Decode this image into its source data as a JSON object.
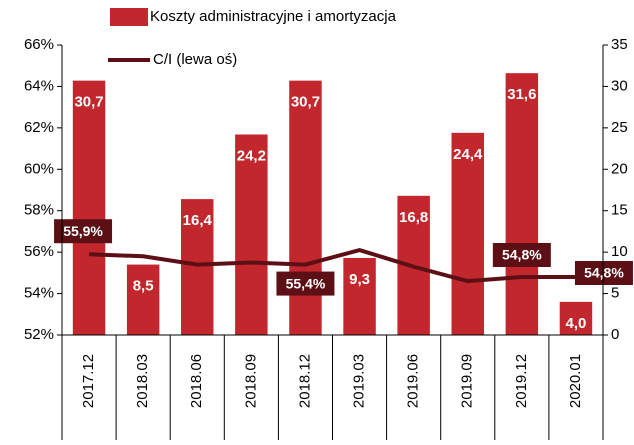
{
  "chart_data": {
    "type": "bar_line",
    "categories": [
      "2017.12",
      "2018.03",
      "2018.06",
      "2018.09",
      "2018.12",
      "2019.03",
      "2019.06",
      "2019.09",
      "2019.12",
      "2020.01"
    ],
    "series": [
      {
        "name": "Koszty administracyjne i amortyzacja",
        "type": "bar",
        "axis": "y2",
        "color": "#c1272d",
        "values": [
          30.7,
          8.5,
          16.4,
          24.2,
          30.7,
          9.3,
          16.8,
          24.4,
          31.6,
          4.0
        ],
        "value_labels": [
          "30,7",
          "8,5",
          "16,4",
          "24,2",
          "30,7",
          "9,3",
          "16,8",
          "24,4",
          "31,6",
          "4,0"
        ]
      },
      {
        "name": "C/I (lewa oś)",
        "type": "line",
        "axis": "y",
        "color": "#5c1015",
        "values": [
          55.9,
          55.8,
          55.4,
          55.5,
          55.4,
          56.1,
          55.3,
          54.6,
          54.8,
          54.8
        ],
        "value_labels": [
          "55,9%",
          null,
          null,
          null,
          "55,4%",
          null,
          null,
          null,
          "54,8%",
          "54,8%"
        ]
      }
    ],
    "ylim": [
      52,
      66
    ],
    "yticks": [
      {
        "value": 52,
        "label": "52%"
      },
      {
        "value": 54,
        "label": "54%"
      },
      {
        "value": 56,
        "label": "56%"
      },
      {
        "value": 58,
        "label": "58%"
      },
      {
        "value": 60,
        "label": "60%"
      },
      {
        "value": 62,
        "label": "62%"
      },
      {
        "value": 64,
        "label": "64%"
      },
      {
        "value": 66,
        "label": "66%"
      }
    ],
    "y2lim": [
      0,
      35
    ],
    "y2ticks": [
      0,
      5,
      10,
      15,
      20,
      25,
      30,
      35
    ],
    "legend": "top"
  }
}
